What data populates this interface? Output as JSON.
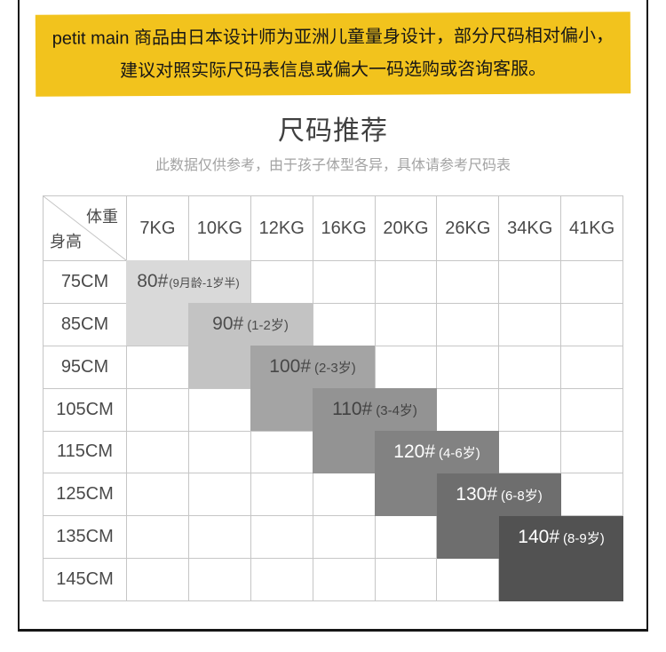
{
  "banner": {
    "line1": "petit main 商品由日本设计师为亚洲儿童量身设计，部分尺码相对偏小，",
    "line2": "建议对照实际尺码表信息或偏大一码选购或咨询客服。",
    "bg_color": "#f2c31d",
    "text_color": "#161616"
  },
  "section": {
    "title": "尺码推荐",
    "subtitle": "此数据仅供参考，由于孩子体型各异，具体请参考尺码表"
  },
  "size_table": {
    "corner": {
      "col_axis": "体重",
      "row_axis": "身高"
    },
    "weight_headers": [
      "7KG",
      "10KG",
      "12KG",
      "16KG",
      "20KG",
      "26KG",
      "34KG",
      "41KG"
    ],
    "height_rows": [
      "75CM",
      "85CM",
      "95CM",
      "105CM",
      "115CM",
      "125CM",
      "135CM",
      "145CM"
    ],
    "grid_border_color": "#c6c6c6",
    "blocks": [
      {
        "size": "80#",
        "age": "(9月龄-1岁半)",
        "bg": "#d9d9d9",
        "fg": "#4d4d4d",
        "tail": "single"
      },
      {
        "size": "90#",
        "age": "(1-2岁)",
        "bg": "#c3c3c3",
        "fg": "#4d4d4d",
        "tail": "single"
      },
      {
        "size": "100#",
        "age": "(2-3岁)",
        "bg": "#a4a4a4",
        "fg": "#474747",
        "tail": "single"
      },
      {
        "size": "110#",
        "age": "(3-4岁)",
        "bg": "#939393",
        "fg": "#424242",
        "tail": "single"
      },
      {
        "size": "120#",
        "age": "(4-6岁)",
        "bg": "#828282",
        "fg": "#ffffff",
        "tail": "single"
      },
      {
        "size": "130#",
        "age": "(6-8岁)",
        "bg": "#6e6e6e",
        "fg": "#ffffff",
        "tail": "single"
      },
      {
        "size": "140#",
        "age": "(8-9岁)",
        "bg": "#525252",
        "fg": "#ffffff",
        "tail": "double"
      }
    ]
  },
  "frame_color": "#161616"
}
